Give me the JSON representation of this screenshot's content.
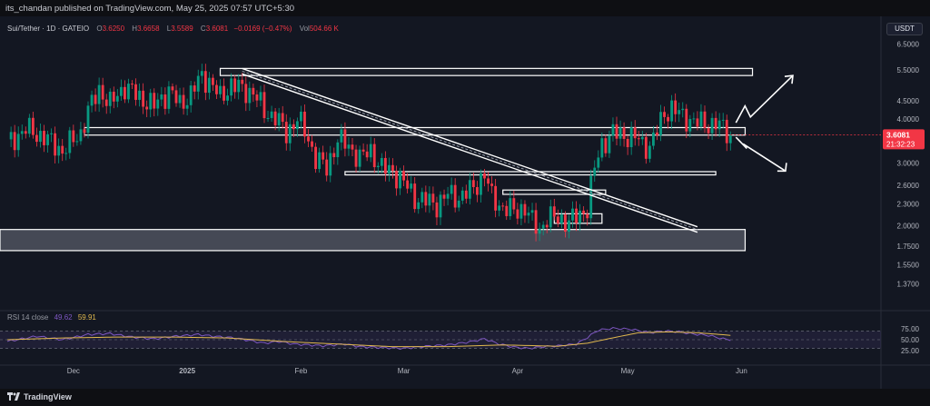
{
  "header": {
    "text": "its_chandan published on TradingView.com, May 25, 2025 07:57 UTC+5:30"
  },
  "legend": {
    "symbol": "Sui/Tether · 1D · GATEIO",
    "o_label": "O",
    "o_value": "3.6250",
    "h_label": "H",
    "h_value": "3.6658",
    "l_label": "L",
    "l_value": "3.5589",
    "c_label": "C",
    "c_value": "3.6081",
    "change": "−0.0169 (−0.47%)",
    "vol_label": "Vol",
    "vol_value": "504.66 K"
  },
  "currency_button": "USDT",
  "rsi_legend": {
    "label": "RSI 14 close",
    "value1": "49.62",
    "value2": "59.91"
  },
  "footer": {
    "brand": "TradingView"
  },
  "colors": {
    "up": "#089981",
    "down": "#f23645",
    "rsi": "#7e57c2",
    "rsi_ma": "#e0b84d",
    "price_tag": "#f23645"
  },
  "chart_data": {
    "type": "candlestick",
    "title": "Sui/Tether · 1D · GATEIO",
    "y_scale": "log",
    "ylim": [
      1.2,
      7.0
    ],
    "y_ticks": [
      {
        "value": 6.5,
        "label": "6.5000"
      },
      {
        "value": 5.5,
        "label": "5.5000"
      },
      {
        "value": 4.5,
        "label": "4.5000"
      },
      {
        "value": 4.0,
        "label": "4.0000"
      },
      {
        "value": 3.0,
        "label": "3.0000"
      },
      {
        "value": 2.6,
        "label": "2.6000"
      },
      {
        "value": 2.3,
        "label": "2.3000"
      },
      {
        "value": 2.0,
        "label": "2.0000"
      },
      {
        "value": 1.75,
        "label": "1.7500"
      },
      {
        "value": 1.55,
        "label": "1.5500"
      },
      {
        "value": 1.37,
        "label": "1.3700"
      }
    ],
    "x_labels": [
      {
        "day": 18,
        "label": "Dec"
      },
      {
        "day": 49,
        "label": "2025"
      },
      {
        "day": 80,
        "label": "Feb"
      },
      {
        "day": 108,
        "label": "Mar"
      },
      {
        "day": 139,
        "label": "Apr"
      },
      {
        "day": 169,
        "label": "May"
      },
      {
        "day": 200,
        "label": "Jun"
      }
    ],
    "x_range_days": [
      -2,
      238
    ],
    "price_tag": {
      "value": 3.6081,
      "label": "3.6081",
      "countdown": "21:32:23"
    },
    "candle_anchors": [
      [
        0,
        3.4
      ],
      [
        5,
        3.75
      ],
      [
        10,
        3.55
      ],
      [
        15,
        3.25
      ],
      [
        20,
        3.65
      ],
      [
        22,
        4.2
      ],
      [
        25,
        4.85
      ],
      [
        28,
        4.4
      ],
      [
        32,
        4.95
      ],
      [
        36,
        4.6
      ],
      [
        40,
        4.35
      ],
      [
        44,
        4.8
      ],
      [
        47,
        4.4
      ],
      [
        50,
        4.7
      ],
      [
        53,
        5.3
      ],
      [
        55,
        5.1
      ],
      [
        58,
        4.6
      ],
      [
        61,
        5.0
      ],
      [
        64,
        4.85
      ],
      [
        67,
        4.75
      ],
      [
        70,
        4.2
      ],
      [
        73,
        4.05
      ],
      [
        76,
        3.65
      ],
      [
        79,
        4.0
      ],
      [
        81,
        3.7
      ],
      [
        84,
        3.1
      ],
      [
        87,
        2.9
      ],
      [
        90,
        3.5
      ],
      [
        93,
        3.35
      ],
      [
        96,
        3.1
      ],
      [
        99,
        3.25
      ],
      [
        102,
        2.9
      ],
      [
        105,
        2.85
      ],
      [
        108,
        2.65
      ],
      [
        111,
        2.4
      ],
      [
        114,
        2.35
      ],
      [
        117,
        2.3
      ],
      [
        120,
        2.45
      ],
      [
        123,
        2.4
      ],
      [
        127,
        2.55
      ],
      [
        130,
        2.8
      ],
      [
        132,
        2.4
      ],
      [
        135,
        2.25
      ],
      [
        138,
        2.2
      ],
      [
        141,
        2.25
      ],
      [
        143,
        2.05
      ],
      [
        145,
        1.95
      ],
      [
        147,
        2.1
      ],
      [
        150,
        2.1
      ],
      [
        153,
        2.05
      ],
      [
        156,
        2.15
      ],
      [
        158,
        2.25
      ],
      [
        160,
        2.9
      ],
      [
        162,
        3.4
      ],
      [
        165,
        3.65
      ],
      [
        168,
        3.6
      ],
      [
        171,
        3.55
      ],
      [
        173,
        3.4
      ],
      [
        175,
        3.35
      ],
      [
        177,
        3.7
      ],
      [
        179,
        4.15
      ],
      [
        181,
        4.3
      ],
      [
        184,
        4.05
      ],
      [
        187,
        3.95
      ],
      [
        190,
        3.85
      ],
      [
        193,
        3.9
      ],
      [
        195,
        3.75
      ],
      [
        197,
        3.61
      ]
    ],
    "rsi": {
      "bands": [
        30,
        50,
        70
      ],
      "ticks": [
        {
          "value": 75,
          "label": "75.00"
        },
        {
          "value": 50,
          "label": "50.00"
        },
        {
          "value": 25,
          "label": "25.00"
        }
      ],
      "rsi_anchors": [
        [
          0,
          46
        ],
        [
          8,
          58
        ],
        [
          15,
          50
        ],
        [
          22,
          62
        ],
        [
          28,
          64
        ],
        [
          34,
          56
        ],
        [
          40,
          52
        ],
        [
          46,
          58
        ],
        [
          52,
          62
        ],
        [
          56,
          58
        ],
        [
          62,
          54
        ],
        [
          66,
          48
        ],
        [
          70,
          42
        ],
        [
          74,
          46
        ],
        [
          78,
          40
        ],
        [
          82,
          38
        ],
        [
          86,
          36
        ],
        [
          92,
          40
        ],
        [
          96,
          34
        ],
        [
          102,
          32
        ],
        [
          108,
          30
        ],
        [
          114,
          35
        ],
        [
          120,
          38
        ],
        [
          126,
          45
        ],
        [
          130,
          52
        ],
        [
          134,
          40
        ],
        [
          138,
          33
        ],
        [
          142,
          30
        ],
        [
          146,
          34
        ],
        [
          150,
          36
        ],
        [
          155,
          40
        ],
        [
          158,
          55
        ],
        [
          161,
          72
        ],
        [
          165,
          76
        ],
        [
          170,
          74
        ],
        [
          175,
          66
        ],
        [
          179,
          70
        ],
        [
          183,
          68
        ],
        [
          187,
          63
        ],
        [
          191,
          60
        ],
        [
          195,
          52
        ],
        [
          197,
          50
        ]
      ],
      "ma_anchors": [
        [
          0,
          50
        ],
        [
          15,
          54
        ],
        [
          30,
          56
        ],
        [
          45,
          56
        ],
        [
          60,
          54
        ],
        [
          75,
          46
        ],
        [
          90,
          40
        ],
        [
          105,
          34
        ],
        [
          120,
          34
        ],
        [
          135,
          38
        ],
        [
          150,
          35
        ],
        [
          158,
          42
        ],
        [
          166,
          56
        ],
        [
          172,
          66
        ],
        [
          180,
          68
        ],
        [
          188,
          66
        ],
        [
          197,
          60
        ]
      ]
    },
    "annotations": {
      "resistance_zone": [
        5.3,
        5.55
      ],
      "support_zone_high": [
        3.6,
        3.78
      ],
      "support_zone_mid": [
        2.78,
        2.84
      ],
      "small_box_mid": [
        2.45,
        2.52
      ],
      "small_box_low": [
        2.03,
        2.16
      ],
      "support_zone_low": [
        1.7,
        1.95
      ],
      "trendline": {
        "from": [
          64,
          5.45
        ],
        "to": [
          188,
          1.95
        ]
      },
      "arrow_up_target": 5.3,
      "arrow_down_target": 2.85
    }
  }
}
